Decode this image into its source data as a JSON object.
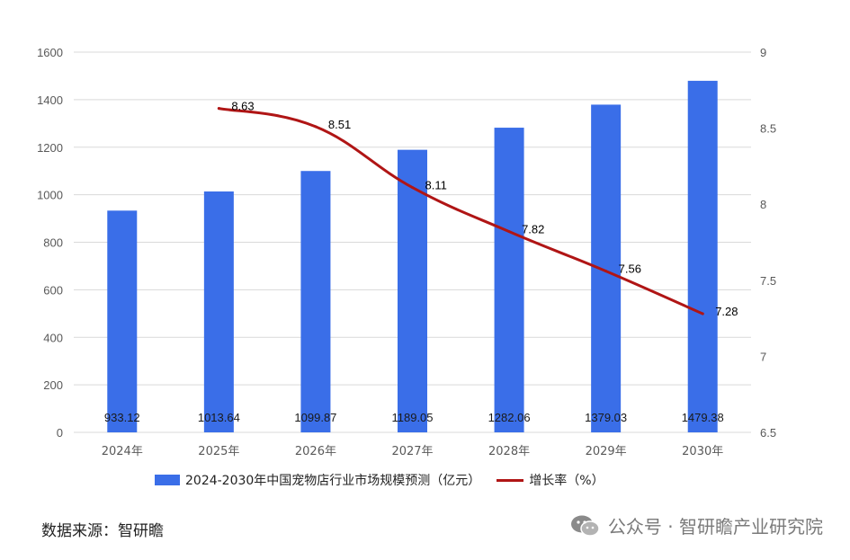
{
  "colors": {
    "bar": "#3a6ee8",
    "line": "#b01515",
    "grid": "#d9d9d9"
  },
  "chart_data": {
    "type": "bar",
    "categories": [
      "2024年",
      "2025年",
      "2026年",
      "2027年",
      "2028年",
      "2029年",
      "2030年"
    ],
    "series": [
      {
        "name": "2024-2030年中国宠物店行业市场规模预测（亿元）",
        "type": "bar",
        "axis": "left",
        "values": [
          933.12,
          1013.64,
          1099.87,
          1189.05,
          1282.06,
          1379.03,
          1479.38
        ],
        "labels": [
          "933.12",
          "1013.64",
          "1099.87",
          "1189.05",
          "1282.06",
          "1379.03",
          "1479.38"
        ]
      },
      {
        "name": "增长率（%）",
        "type": "line",
        "axis": "right",
        "values": [
          null,
          8.63,
          8.51,
          8.11,
          7.82,
          7.56,
          7.28
        ],
        "labels": [
          null,
          "8.63",
          "8.51",
          "8.11",
          "7.82",
          "7.56",
          "7.28"
        ]
      }
    ],
    "y_left": {
      "ylim": [
        0,
        1600
      ],
      "ticks": [
        "0",
        "200",
        "400",
        "600",
        "800",
        "1000",
        "1200",
        "1400",
        "1600"
      ]
    },
    "y_right": {
      "ylim": [
        6.5,
        9
      ],
      "ticks": [
        "6.5",
        "7",
        "7.5",
        "8",
        "8.5",
        "9"
      ]
    },
    "grid": true,
    "legend_position": "bottom"
  },
  "footer": {
    "source": "数据来源：智研瞻",
    "watermark": "公众号 · 智研瞻产业研究院",
    "watermark_icon": "wechat-icon"
  }
}
